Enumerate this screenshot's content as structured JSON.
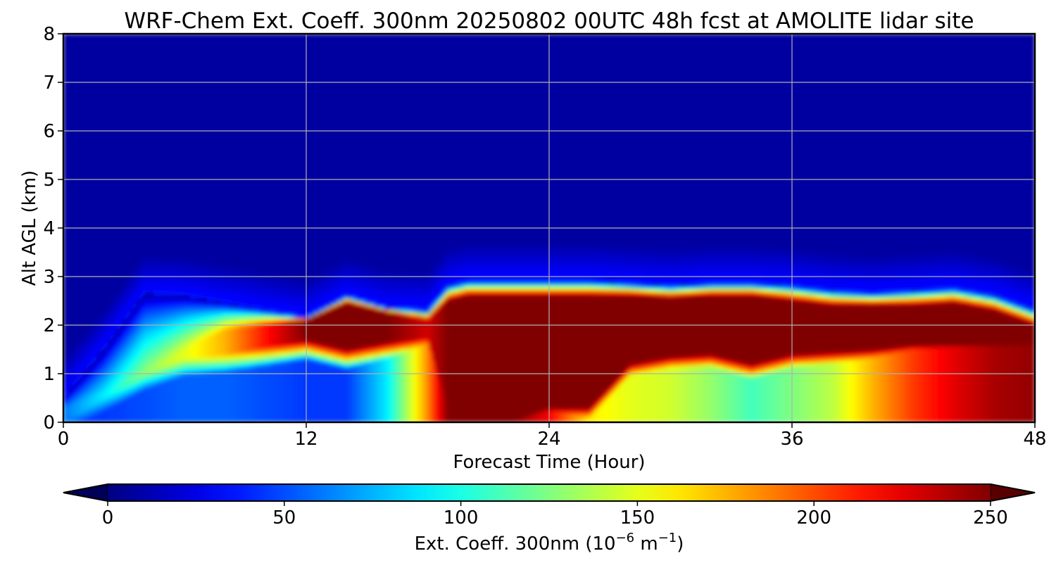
{
  "chart_data": {
    "type": "heatmap",
    "title": "WRF-Chem Ext. Coeff. 300nm  20250802 00UTC 48h fcst at AMOLITE lidar site",
    "xlabel": "Forecast Time (Hour)",
    "ylabel": "Alt AGL (km)",
    "xlim": [
      0,
      48
    ],
    "ylim": [
      0,
      8
    ],
    "xticks": [
      "0",
      "12",
      "24",
      "36",
      "48"
    ],
    "yticks": [
      "0",
      "1",
      "2",
      "3",
      "4",
      "5",
      "6",
      "7",
      "8"
    ],
    "grid": true,
    "colormap": "jet",
    "colorbar": {
      "label": "Ext. Coeff. 300nm  (10",
      "label_exp1": "−6",
      "label_mid": " m",
      "label_exp2": "−1",
      "label_end": ")",
      "ticks": [
        "0",
        "50",
        "100",
        "150",
        "200",
        "250"
      ],
      "min": 0,
      "max": 250,
      "extend": "both"
    },
    "hours": [
      0,
      2,
      4,
      6,
      8,
      10,
      12,
      14,
      16,
      18,
      19,
      20,
      22,
      24,
      26,
      28,
      30,
      32,
      34,
      36,
      38,
      40,
      42,
      44,
      46,
      48
    ],
    "layer_top_km": [
      0.5,
      1.5,
      2.65,
      2.6,
      2.45,
      2.3,
      2.15,
      2.6,
      2.35,
      2.3,
      2.8,
      2.9,
      2.9,
      2.9,
      2.9,
      2.85,
      2.8,
      2.85,
      2.85,
      2.8,
      2.7,
      2.65,
      2.7,
      2.75,
      2.6,
      2.3
    ],
    "layer_core_km": [
      0.3,
      0.6,
      1.0,
      1.5,
      1.9,
      2.0,
      2.1,
      2.45,
      2.25,
      2.1,
      2.5,
      2.6,
      2.6,
      2.6,
      2.6,
      2.6,
      2.55,
      2.6,
      2.6,
      2.5,
      2.4,
      2.4,
      2.4,
      2.45,
      2.3,
      2.0
    ],
    "layer_bottom_km": [
      0,
      0.5,
      1.0,
      1.3,
      1.4,
      1.55,
      1.7,
      1.5,
      1.65,
      1.75,
      0.3,
      0,
      0,
      0.3,
      0.3,
      1.2,
      1.35,
      1.4,
      1.2,
      1.4,
      1.45,
      1.5,
      1.6,
      1.6,
      1.6,
      1.6
    ],
    "layer_peak": [
      60,
      90,
      130,
      150,
      175,
      215,
      250,
      250,
      250,
      230,
      250,
      250,
      250,
      250,
      250,
      250,
      250,
      250,
      250,
      250,
      250,
      250,
      250,
      250,
      250,
      250
    ],
    "boundary_layer_peak": [
      45,
      45,
      50,
      55,
      55,
      50,
      45,
      45,
      90,
      185,
      250,
      250,
      250,
      220,
      160,
      150,
      145,
      130,
      110,
      125,
      140,
      175,
      205,
      225,
      240,
      245
    ],
    "background_aloft": 8
  }
}
